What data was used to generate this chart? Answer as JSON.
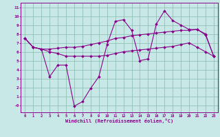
{
  "xlabel": "Windchill (Refroidissement éolien,°C)",
  "bg_color": "#c8e8e8",
  "grid_color": "#88bbaa",
  "line_color": "#880088",
  "x": [
    0,
    1,
    2,
    3,
    4,
    5,
    6,
    7,
    8,
    9,
    10,
    11,
    12,
    13,
    14,
    15,
    16,
    17,
    18,
    19,
    20,
    21,
    22,
    23
  ],
  "line1": [
    7.5,
    6.5,
    6.3,
    3.2,
    4.5,
    4.5,
    -0.1,
    0.4,
    1.9,
    3.2,
    6.8,
    9.4,
    9.6,
    8.4,
    5.0,
    5.2,
    9.1,
    10.6,
    9.5,
    9.0,
    8.5,
    8.5,
    7.9,
    5.5
  ],
  "line2": [
    7.5,
    6.5,
    6.3,
    6.3,
    6.4,
    6.5,
    6.5,
    6.6,
    6.8,
    7.0,
    7.2,
    7.5,
    7.6,
    7.8,
    7.9,
    8.0,
    8.1,
    8.2,
    8.3,
    8.4,
    8.4,
    8.5,
    8.0,
    5.5
  ],
  "line3": [
    7.5,
    6.5,
    6.3,
    6.0,
    5.8,
    5.5,
    5.5,
    5.5,
    5.5,
    5.5,
    5.6,
    5.8,
    6.0,
    6.1,
    6.2,
    6.3,
    6.4,
    6.5,
    6.6,
    6.8,
    7.0,
    6.5,
    6.0,
    5.5
  ],
  "ylim": [
    -0.8,
    11.5
  ],
  "xlim": [
    -0.5,
    23.5
  ],
  "yticks": [
    0,
    1,
    2,
    3,
    4,
    5,
    6,
    7,
    8,
    9,
    10,
    11
  ],
  "ytick_labels": [
    "-0",
    "1",
    "2",
    "3",
    "4",
    "5",
    "6",
    "7",
    "8",
    "9",
    "10",
    "11"
  ],
  "xticks": [
    0,
    1,
    2,
    3,
    4,
    5,
    6,
    7,
    8,
    9,
    10,
    11,
    12,
    13,
    14,
    15,
    16,
    17,
    18,
    19,
    20,
    21,
    22,
    23
  ]
}
